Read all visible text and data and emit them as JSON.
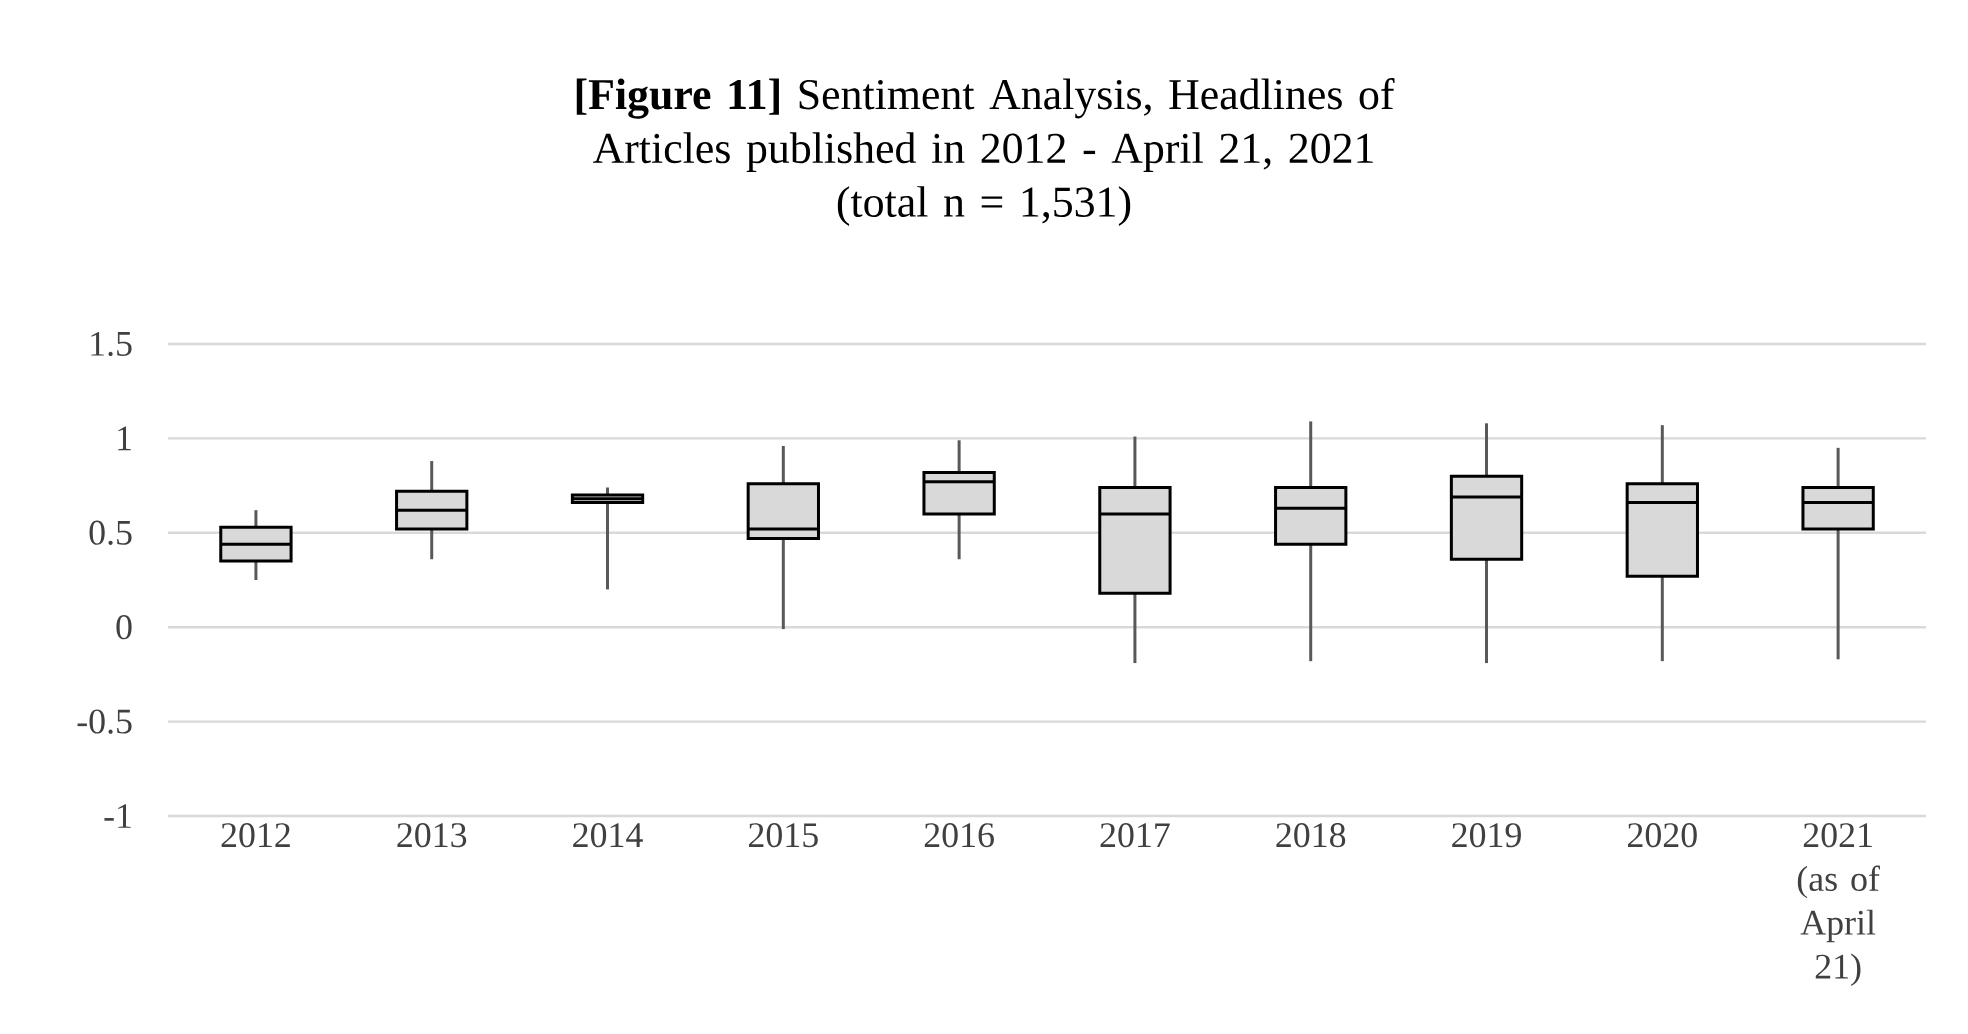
{
  "chart_data": {
    "type": "box",
    "title": "**[Figure 11]** Sentiment Analysis, Headlines of Articles published in 2012 - April 21, 2021",
    "subtitle": "(total n = 1,531)",
    "categories": [
      "2012",
      "2013",
      "2014",
      "2015",
      "2016",
      "2017",
      "2018",
      "2019",
      "2020",
      "2021 (as of April 21)"
    ],
    "boxes": [
      {
        "low": 0.25,
        "q1": 0.35,
        "median": 0.44,
        "q3": 0.53,
        "high": 0.62
      },
      {
        "low": 0.36,
        "q1": 0.52,
        "median": 0.62,
        "q3": 0.72,
        "high": 0.88
      },
      {
        "low": 0.2,
        "q1": 0.66,
        "median": 0.68,
        "q3": 0.7,
        "high": 0.74
      },
      {
        "low": -0.01,
        "q1": 0.47,
        "median": 0.52,
        "q3": 0.76,
        "high": 0.96
      },
      {
        "low": 0.36,
        "q1": 0.6,
        "median": 0.77,
        "q3": 0.82,
        "high": 0.99
      },
      {
        "low": -0.19,
        "q1": 0.18,
        "median": 0.6,
        "q3": 0.74,
        "high": 1.01
      },
      {
        "low": -0.18,
        "q1": 0.44,
        "median": 0.63,
        "q3": 0.74,
        "high": 1.09
      },
      {
        "low": -0.19,
        "q1": 0.36,
        "median": 0.69,
        "q3": 0.8,
        "high": 1.08
      },
      {
        "low": -0.18,
        "q1": 0.27,
        "median": 0.66,
        "q3": 0.76,
        "high": 1.07
      },
      {
        "low": -0.17,
        "q1": 0.52,
        "median": 0.66,
        "q3": 0.74,
        "high": 0.95
      }
    ],
    "color": "#d9d9d9",
    "ylim": [
      -1,
      1.5
    ],
    "yticks": [
      -1,
      -0.5,
      0,
      0.5,
      1,
      1.5
    ],
    "grid": "y"
  }
}
